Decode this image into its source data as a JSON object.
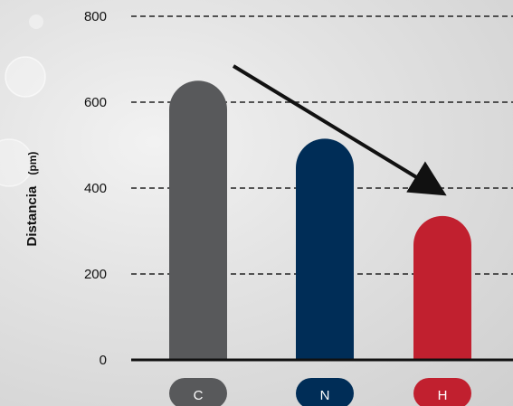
{
  "chart_data": {
    "type": "bar",
    "title": "",
    "xlabel": "",
    "ylabel": "Distancia",
    "ylabel_unit": "(pm)",
    "categories": [
      "C",
      "N",
      "H"
    ],
    "values": [
      650,
      515,
      335
    ],
    "ylim": [
      0,
      800
    ],
    "yticks": [
      "0",
      "200",
      "400",
      "600",
      "800"
    ],
    "grid": true,
    "annotation": "arrow-decreasing-trend"
  },
  "colors": {
    "C": "#58595b",
    "N": "#002d57",
    "H": "#c1202f"
  }
}
